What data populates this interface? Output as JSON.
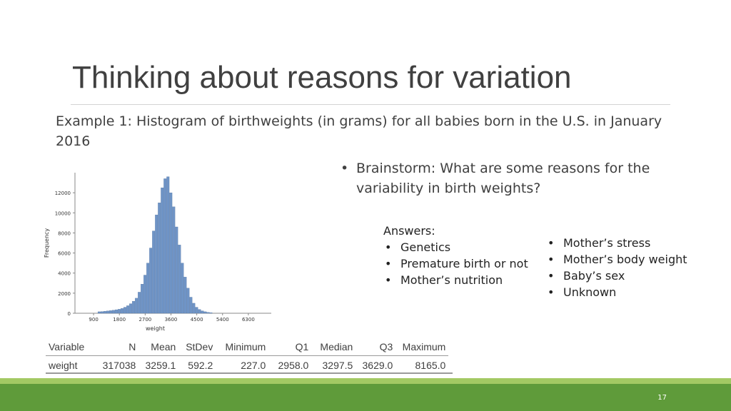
{
  "slide": {
    "title": "Thinking about reasons for variation",
    "example": "Example 1: Histogram of birthweights (in grams) for all babies born in the U.S. in January 2016",
    "brainstorm": "Brainstorm: What are some reasons for the variability in birth weights?",
    "answers_heading": "Answers:",
    "answers_col1": [
      "Genetics",
      "Premature birth or not",
      "Mother’s nutrition"
    ],
    "answers_col2": [
      "Mother’s stress",
      "Mother’s body weight",
      "Baby’s sex",
      "Unknown"
    ],
    "page_number": "17"
  },
  "stats_table": {
    "headers": [
      "Variable",
      "N",
      "Mean",
      "StDev",
      "Minimum",
      "Q1",
      "Median",
      "Q3",
      "Maximum"
    ],
    "row": [
      "weight",
      "317038",
      "3259.1",
      "592.2",
      "227.0",
      "2958.0",
      "3297.5",
      "3629.0",
      "8165.0"
    ]
  },
  "colors": {
    "bar": "#6f94c6",
    "accent_green": "#5f9b3a",
    "accent_light_green": "#a3c963"
  },
  "chart_data": {
    "type": "bar",
    "xlabel": "weight",
    "ylabel": "Frequency",
    "x_ticks": [
      900,
      1800,
      2700,
      3600,
      4500,
      5400,
      6300
    ],
    "y_ticks": [
      0,
      2000,
      4000,
      6000,
      8000,
      10000,
      12000
    ],
    "xlim": [
      250,
      7100
    ],
    "ylim": [
      0,
      14000
    ],
    "bin_width": 100,
    "x": [
      1100,
      1200,
      1300,
      1400,
      1500,
      1600,
      1700,
      1800,
      1900,
      2000,
      2100,
      2200,
      2300,
      2400,
      2500,
      2600,
      2700,
      2800,
      2900,
      3000,
      3100,
      3200,
      3300,
      3400,
      3500,
      3600,
      3700,
      3800,
      3900,
      4000,
      4100,
      4200,
      4300,
      4400,
      4500,
      4600,
      4700,
      4800,
      4900,
      5000
    ],
    "values": [
      150,
      170,
      200,
      230,
      260,
      300,
      350,
      400,
      480,
      600,
      750,
      950,
      1200,
      1500,
      2100,
      2900,
      3800,
      5000,
      6500,
      8200,
      9800,
      11000,
      12500,
      13400,
      13600,
      12000,
      10600,
      8600,
      6800,
      5000,
      3600,
      2500,
      1600,
      1000,
      600,
      380,
      240,
      150,
      90,
      60
    ]
  }
}
